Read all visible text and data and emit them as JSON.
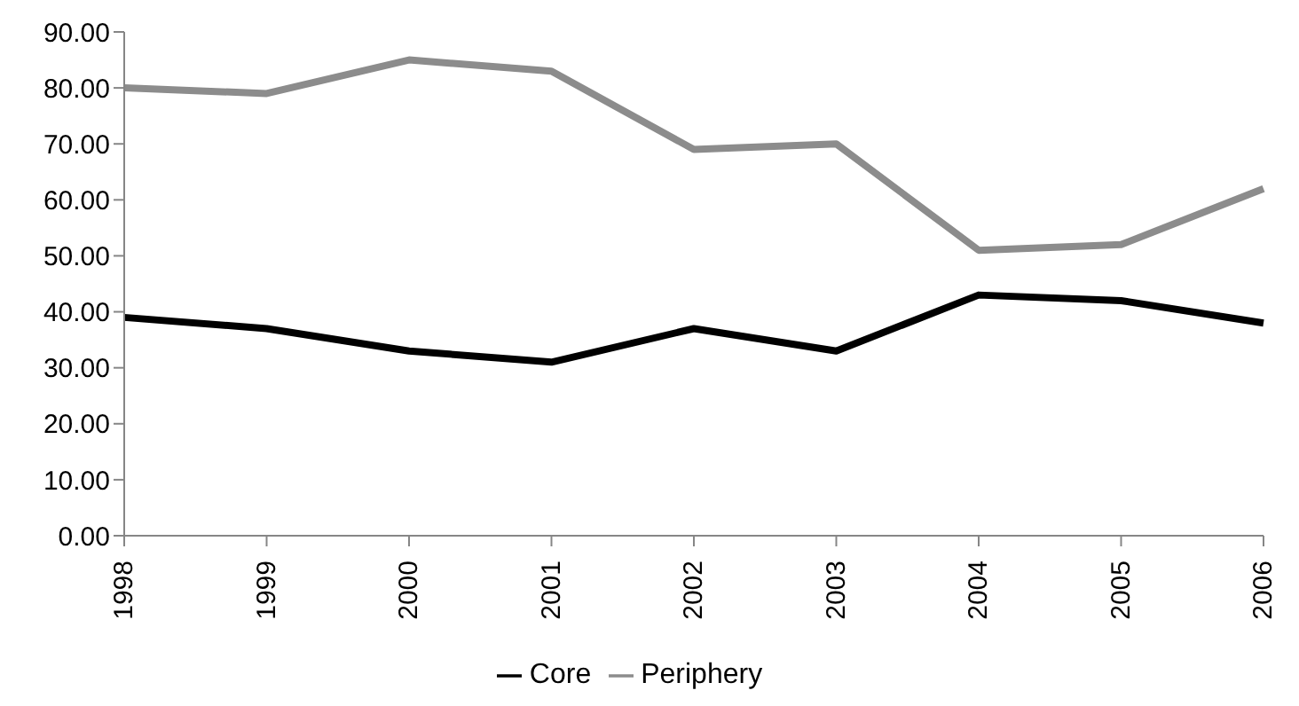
{
  "chart_data": {
    "type": "line",
    "categories": [
      "1998",
      "1999",
      "2000",
      "2001",
      "2002",
      "2003",
      "2004",
      "2005",
      "2006"
    ],
    "series": [
      {
        "name": "Core",
        "color": "#000000",
        "values": [
          39,
          37,
          33,
          31,
          37,
          33,
          43,
          42,
          38
        ]
      },
      {
        "name": "Periphery",
        "color": "#8c8c8c",
        "values": [
          80,
          79,
          85,
          83,
          69,
          70,
          51,
          52,
          62
        ]
      }
    ],
    "ylim": [
      0,
      90
    ],
    "yticks": [
      {
        "value": 0,
        "label": "0.00"
      },
      {
        "value": 10,
        "label": "10.00"
      },
      {
        "value": 20,
        "label": "20.00"
      },
      {
        "value": 30,
        "label": "30.00"
      },
      {
        "value": 40,
        "label": "40.00"
      },
      {
        "value": 50,
        "label": "50.00"
      },
      {
        "value": 60,
        "label": "60.00"
      },
      {
        "value": 70,
        "label": "70.00"
      },
      {
        "value": 80,
        "label": "80.00"
      },
      {
        "value": 90,
        "label": "90.00"
      }
    ],
    "grid": false,
    "legend": "bottom",
    "marker": "none",
    "line_style": "solid"
  }
}
